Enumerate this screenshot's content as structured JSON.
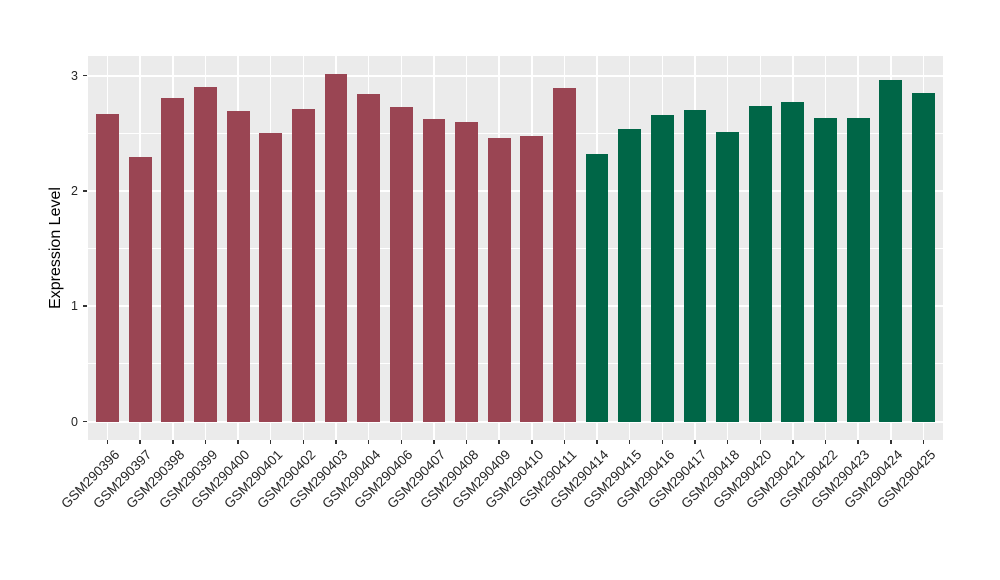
{
  "chart_data": {
    "type": "bar",
    "title": "",
    "xlabel": "",
    "ylabel": "Expression Level",
    "ylim": [
      -0.16,
      3.17
    ],
    "yticks": [
      0,
      1,
      2,
      3
    ],
    "ytick_labels": [
      "0",
      "1",
      "2",
      "3"
    ],
    "grid": true,
    "legend_position": "none",
    "categories": [
      "GSM290396",
      "GSM290397",
      "GSM290398",
      "GSM290399",
      "GSM290400",
      "GSM290401",
      "GSM290402",
      "GSM290403",
      "GSM290404",
      "GSM290406",
      "GSM290407",
      "GSM290408",
      "GSM290409",
      "GSM290410",
      "GSM290411",
      "GSM290414",
      "GSM290415",
      "GSM290416",
      "GSM290417",
      "GSM290418",
      "GSM290420",
      "GSM290421",
      "GSM290422",
      "GSM290423",
      "GSM290424",
      "GSM290425"
    ],
    "values": [
      2.67,
      2.29,
      2.81,
      2.9,
      2.69,
      2.5,
      2.71,
      3.01,
      2.84,
      2.73,
      2.62,
      2.6,
      2.46,
      2.48,
      2.89,
      2.32,
      2.54,
      2.66,
      2.7,
      2.51,
      2.74,
      2.77,
      2.63,
      2.63,
      2.96,
      2.85
    ],
    "bar_colors": [
      "#9A4553",
      "#9A4553",
      "#9A4553",
      "#9A4553",
      "#9A4553",
      "#9A4553",
      "#9A4553",
      "#9A4553",
      "#9A4553",
      "#9A4553",
      "#9A4553",
      "#9A4553",
      "#9A4553",
      "#9A4553",
      "#9A4553",
      "#006647",
      "#006647",
      "#006647",
      "#006647",
      "#006647",
      "#006647",
      "#006647",
      "#006647",
      "#006647",
      "#006647",
      "#006647"
    ],
    "colors": {
      "red_group": "#9A4553",
      "green_group": "#006647",
      "panel_background": "#EBEBEB",
      "gridline": "#FFFFFF",
      "axis_text": "#262626",
      "tick_mark": "#333333",
      "figure_background": "#FFFFFF"
    }
  }
}
